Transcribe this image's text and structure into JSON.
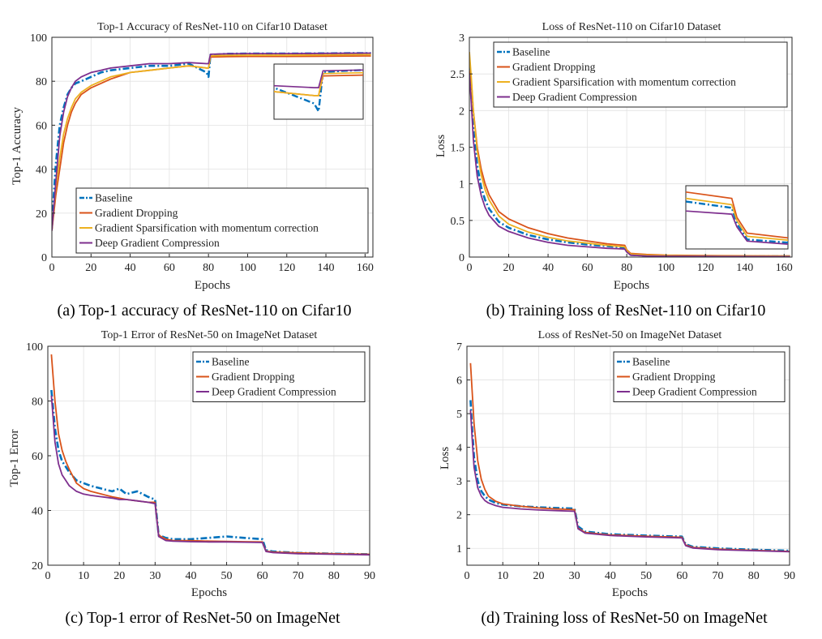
{
  "colors": {
    "baseline": "#0072BD",
    "gradient_dropping": "#D95319",
    "gradient_sparsification": "#EDB120",
    "deep_gradient_compression": "#7E2F8E"
  },
  "chart_data": [
    {
      "id": "a",
      "type": "line",
      "title": "Top-1 Accuracy of ResNet-110 on Cifar10 Dataset",
      "caption": "(a)  Top-1 accuracy of ResNet-110 on Cifar10",
      "xlabel": "Epochs",
      "ylabel": "Top-1 Accuracy",
      "xlim": [
        0,
        164
      ],
      "ylim": [
        0,
        100
      ],
      "xticks": [
        0,
        20,
        40,
        60,
        80,
        100,
        120,
        140,
        160
      ],
      "yticks": [
        0,
        20,
        40,
        60,
        80,
        100
      ],
      "grid": true,
      "legend_position": "bottom-right",
      "inset": "top-right",
      "series": [
        {
          "name": "Baseline",
          "key": "baseline",
          "dash": "dashdot",
          "x": [
            0,
            2,
            4,
            6,
            8,
            10,
            12,
            15,
            20,
            25,
            30,
            40,
            50,
            60,
            70,
            79,
            80,
            81,
            90,
            100,
            120,
            140,
            160,
            163
          ],
          "y": [
            15,
            42,
            60,
            68,
            74,
            77,
            79,
            80,
            82,
            84,
            85,
            86,
            87,
            87,
            88,
            84,
            82,
            92,
            92.5,
            92.6,
            92.6,
            92.7,
            92.8,
            92.8
          ]
        },
        {
          "name": "Gradient Dropping",
          "key": "gradient_dropping",
          "dash": "solid",
          "x": [
            0,
            2,
            4,
            6,
            8,
            10,
            12,
            15,
            20,
            25,
            30,
            40,
            50,
            60,
            70,
            79,
            80,
            81,
            90,
            100,
            120,
            140,
            160,
            163
          ],
          "y": [
            12,
            28,
            40,
            52,
            60,
            66,
            70,
            74,
            77,
            79,
            81,
            84,
            85,
            86,
            87,
            86,
            86,
            91,
            91.2,
            91.3,
            91.3,
            91.4,
            91.5,
            91.5
          ]
        },
        {
          "name": "Gradient Sparsification with momentum correction",
          "key": "gradient_sparsification",
          "dash": "solid",
          "x": [
            0,
            2,
            4,
            6,
            8,
            10,
            12,
            15,
            20,
            25,
            30,
            40,
            50,
            60,
            70,
            79,
            80,
            81,
            90,
            100,
            120,
            140,
            160,
            163
          ],
          "y": [
            12,
            32,
            45,
            56,
            63,
            68,
            72,
            75,
            78,
            80,
            82,
            84,
            85,
            86,
            87,
            86,
            86,
            91.6,
            91.8,
            91.9,
            91.9,
            92,
            92.1,
            92.1
          ]
        },
        {
          "name": "Deep Gradient Compression",
          "key": "deep_gradient_compression",
          "dash": "solid",
          "x": [
            0,
            2,
            4,
            6,
            8,
            10,
            12,
            15,
            20,
            25,
            30,
            40,
            50,
            60,
            70,
            79,
            80,
            81,
            90,
            100,
            120,
            140,
            160,
            163
          ],
          "y": [
            12,
            34,
            55,
            66,
            73,
            77,
            80,
            82,
            84,
            85,
            86,
            87,
            88,
            88,
            88.5,
            88,
            88,
            92.3,
            92.5,
            92.6,
            92.6,
            92.7,
            92.8,
            92.8
          ]
        }
      ]
    },
    {
      "id": "b",
      "type": "line",
      "title": "Loss of ResNet-110 on Cifar10 Dataset",
      "caption": "(b)  Training loss of ResNet-110 on Cifar10",
      "xlabel": "Epochs",
      "ylabel": "Loss",
      "xlim": [
        0,
        164
      ],
      "ylim": [
        0,
        3
      ],
      "xticks": [
        0,
        20,
        40,
        60,
        80,
        100,
        120,
        140,
        160
      ],
      "yticks": [
        0,
        0.5,
        1,
        1.5,
        2,
        2.5,
        3
      ],
      "ytick_labels": [
        "0",
        "0.5",
        "1",
        "1.5",
        "2",
        "2.5",
        "3"
      ],
      "grid": true,
      "legend_position": "top-right",
      "inset": "bottom-right",
      "series": [
        {
          "name": "Baseline",
          "key": "baseline",
          "dash": "dashdot",
          "x": [
            0,
            1,
            2,
            4,
            6,
            8,
            10,
            15,
            20,
            30,
            40,
            50,
            60,
            70,
            79,
            80,
            82,
            90,
            100,
            120,
            140,
            160,
            163
          ],
          "y": [
            2.6,
            2.2,
            1.75,
            1.25,
            0.95,
            0.78,
            0.66,
            0.48,
            0.4,
            0.3,
            0.24,
            0.2,
            0.17,
            0.15,
            0.13,
            0.08,
            0.03,
            0.02,
            0.015,
            0.012,
            0.011,
            0.01,
            0.01
          ]
        },
        {
          "name": "Gradient Dropping",
          "key": "gradient_dropping",
          "dash": "solid",
          "x": [
            0,
            1,
            2,
            4,
            6,
            8,
            10,
            15,
            20,
            30,
            40,
            50,
            60,
            70,
            79,
            80,
            82,
            90,
            100,
            120,
            140,
            160,
            163
          ],
          "y": [
            2.55,
            2.4,
            2.0,
            1.5,
            1.2,
            1.0,
            0.85,
            0.62,
            0.52,
            0.4,
            0.32,
            0.26,
            0.22,
            0.18,
            0.16,
            0.1,
            0.05,
            0.035,
            0.025,
            0.02,
            0.018,
            0.016,
            0.016
          ]
        },
        {
          "name": "Gradient Sparsification with momentum correction",
          "key": "gradient_sparsification",
          "dash": "solid",
          "x": [
            0,
            1,
            2,
            4,
            6,
            8,
            10,
            15,
            20,
            30,
            40,
            50,
            60,
            70,
            79,
            80,
            82,
            90,
            100,
            120,
            140,
            160,
            163
          ],
          "y": [
            2.8,
            2.45,
            2.0,
            1.45,
            1.12,
            0.92,
            0.78,
            0.56,
            0.45,
            0.34,
            0.27,
            0.22,
            0.19,
            0.16,
            0.14,
            0.09,
            0.04,
            0.028,
            0.02,
            0.016,
            0.014,
            0.013,
            0.013
          ]
        },
        {
          "name": "Deep Gradient Compression",
          "key": "deep_gradient_compression",
          "dash": "solid",
          "x": [
            0,
            1,
            2,
            4,
            6,
            8,
            10,
            15,
            20,
            30,
            40,
            50,
            60,
            70,
            79,
            80,
            82,
            90,
            100,
            120,
            140,
            160,
            163
          ],
          "y": [
            2.5,
            2.1,
            1.6,
            1.1,
            0.84,
            0.68,
            0.57,
            0.42,
            0.35,
            0.26,
            0.2,
            0.16,
            0.14,
            0.12,
            0.11,
            0.07,
            0.025,
            0.015,
            0.011,
            0.009,
            0.008,
            0.007,
            0.007
          ]
        }
      ]
    },
    {
      "id": "c",
      "type": "line",
      "title": "Top-1 Error of ResNet-50 on ImageNet Dataset",
      "caption": "(c)  Top-1 error of ResNet-50 on ImageNet",
      "xlabel": "Epochs",
      "ylabel": "Top-1 Error",
      "xlim": [
        0,
        90
      ],
      "ylim": [
        20,
        100
      ],
      "xticks": [
        0,
        10,
        20,
        30,
        40,
        50,
        60,
        70,
        80,
        90
      ],
      "yticks": [
        20,
        40,
        60,
        80,
        100
      ],
      "grid": true,
      "legend_position": "top-right",
      "series": [
        {
          "name": "Baseline",
          "key": "baseline",
          "dash": "dashdot",
          "x": [
            1,
            2,
            3,
            4,
            5,
            6,
            8,
            10,
            12,
            15,
            18,
            20,
            22,
            25,
            28,
            30,
            31,
            33,
            35,
            40,
            45,
            50,
            55,
            60,
            61,
            63,
            70,
            80,
            90
          ],
          "y": [
            84,
            70,
            62,
            58,
            56,
            54,
            51,
            50,
            49,
            48,
            47,
            48,
            46,
            47,
            45,
            44,
            31,
            30,
            29.5,
            29.5,
            30,
            30.5,
            30,
            29.5,
            25.5,
            25,
            24.5,
            24.2,
            24
          ]
        },
        {
          "name": "Gradient Dropping",
          "key": "gradient_dropping",
          "dash": "solid",
          "x": [
            1,
            2,
            3,
            4,
            5,
            6,
            8,
            10,
            12,
            15,
            18,
            20,
            22,
            25,
            28,
            30,
            31,
            33,
            35,
            40,
            45,
            50,
            55,
            60,
            61,
            63,
            70,
            80,
            90
          ],
          "y": [
            97,
            80,
            68,
            62,
            58,
            55,
            50,
            48,
            47,
            46,
            45,
            44.5,
            44,
            43.5,
            43,
            43,
            31,
            29.5,
            29,
            29,
            28.8,
            28.7,
            28.6,
            28.5,
            25.2,
            24.8,
            24.5,
            24.2,
            24
          ]
        },
        {
          "name": "Deep Gradient Compression",
          "key": "deep_gradient_compression",
          "dash": "solid",
          "x": [
            1,
            2,
            3,
            4,
            5,
            6,
            8,
            10,
            12,
            15,
            18,
            20,
            22,
            25,
            28,
            30,
            31,
            33,
            35,
            40,
            45,
            50,
            55,
            60,
            61,
            63,
            70,
            80,
            90
          ],
          "y": [
            82,
            65,
            57,
            53,
            51,
            49,
            47,
            46,
            45.5,
            45,
            44.5,
            44,
            44,
            43.5,
            43,
            42.5,
            30.5,
            29,
            28.8,
            28.6,
            28.5,
            28.5,
            28.4,
            28.3,
            25,
            24.6,
            24.2,
            24,
            23.8
          ]
        }
      ]
    },
    {
      "id": "d",
      "type": "line",
      "title": "Loss of ResNet-50 on ImageNet Dataset",
      "caption": "(d)  Training loss of ResNet-50 on ImageNet",
      "xlabel": "Epochs",
      "ylabel": "Loss",
      "xlim": [
        0,
        90
      ],
      "ylim": [
        0.5,
        7
      ],
      "xticks": [
        0,
        10,
        20,
        30,
        40,
        50,
        60,
        70,
        80,
        90
      ],
      "yticks": [
        1,
        2,
        3,
        4,
        5,
        6,
        7
      ],
      "grid": true,
      "legend_position": "top-right",
      "series": [
        {
          "name": "Baseline",
          "key": "baseline",
          "dash": "dashdot",
          "x": [
            1,
            1.5,
            2,
            3,
            4,
            5,
            6,
            8,
            10,
            15,
            20,
            25,
            30,
            31,
            33,
            40,
            50,
            60,
            61,
            63,
            70,
            80,
            90
          ],
          "y": [
            5.4,
            4.5,
            3.7,
            3.0,
            2.7,
            2.55,
            2.45,
            2.35,
            2.3,
            2.25,
            2.22,
            2.2,
            2.18,
            1.65,
            1.5,
            1.42,
            1.38,
            1.35,
            1.12,
            1.05,
            1.0,
            0.96,
            0.93
          ]
        },
        {
          "name": "Gradient Dropping",
          "key": "gradient_dropping",
          "dash": "solid",
          "x": [
            1,
            1.5,
            2,
            3,
            4,
            5,
            6,
            8,
            10,
            15,
            20,
            25,
            30,
            31,
            33,
            40,
            50,
            60,
            61,
            63,
            70,
            80,
            90
          ],
          "y": [
            6.5,
            5.6,
            4.7,
            3.6,
            3.05,
            2.75,
            2.55,
            2.4,
            2.32,
            2.25,
            2.2,
            2.17,
            2.15,
            1.6,
            1.47,
            1.4,
            1.36,
            1.33,
            1.1,
            1.03,
            0.98,
            0.94,
            0.91
          ]
        },
        {
          "name": "Deep Gradient Compression",
          "key": "deep_gradient_compression",
          "dash": "solid",
          "x": [
            1,
            1.5,
            2,
            3,
            4,
            5,
            6,
            8,
            10,
            15,
            20,
            25,
            30,
            31,
            33,
            40,
            50,
            60,
            61,
            63,
            70,
            80,
            90
          ],
          "y": [
            5.1,
            4.2,
            3.4,
            2.8,
            2.55,
            2.42,
            2.35,
            2.27,
            2.22,
            2.17,
            2.14,
            2.12,
            2.1,
            1.58,
            1.45,
            1.38,
            1.34,
            1.31,
            1.08,
            1.01,
            0.96,
            0.93,
            0.9
          ]
        }
      ]
    }
  ]
}
